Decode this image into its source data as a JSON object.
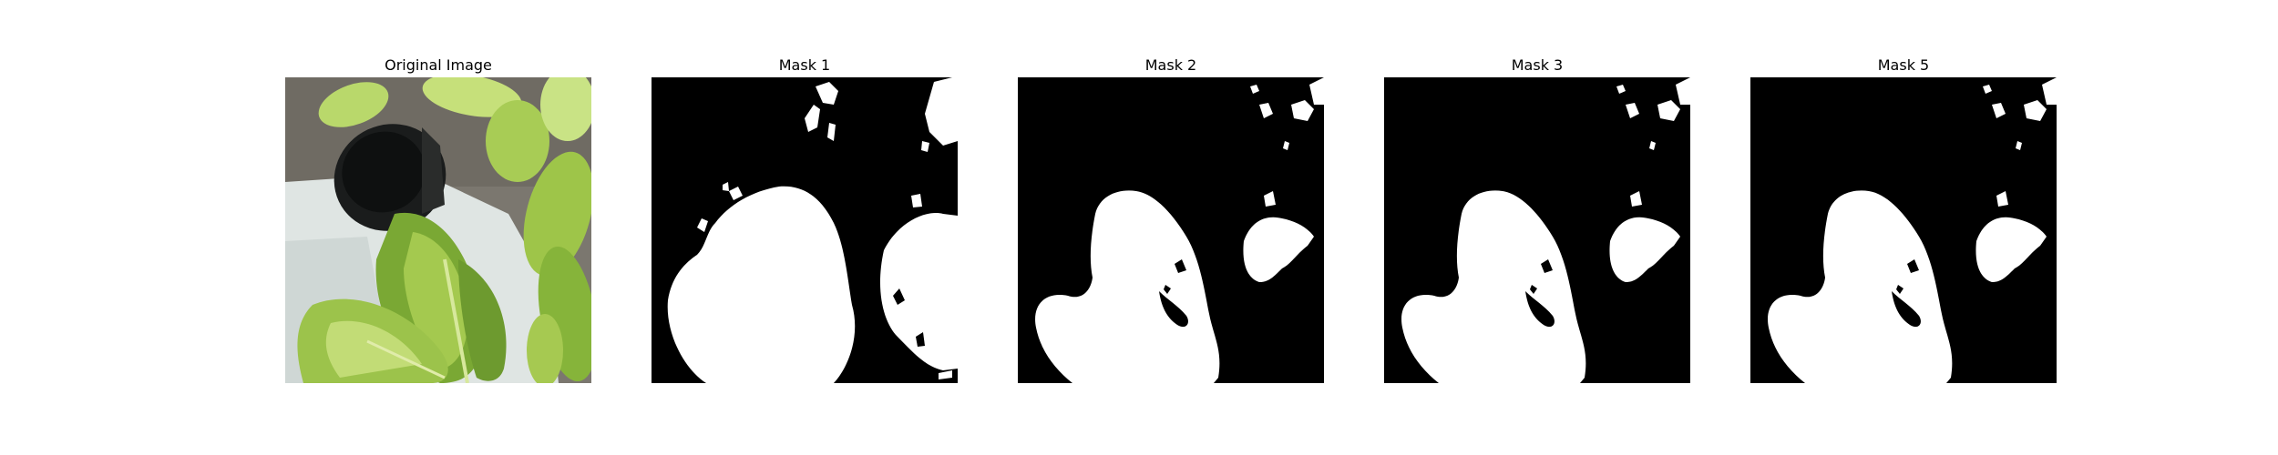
{
  "figure": {
    "panels": [
      {
        "title": "Original Image",
        "kind": "photo"
      },
      {
        "title": "Mask 1",
        "kind": "mask"
      },
      {
        "title": "Mask 2",
        "kind": "mask"
      },
      {
        "title": "Mask 3",
        "kind": "mask"
      },
      {
        "title": "Mask 5",
        "kind": "mask"
      }
    ]
  },
  "colors": {
    "mask_background": "#000000",
    "mask_foreground": "#ffffff",
    "page_background": "#ffffff",
    "leaf_green": "#8dbd3a",
    "pot_light_gray": "#dde3e2",
    "ground_gray": "#7d7a73"
  }
}
